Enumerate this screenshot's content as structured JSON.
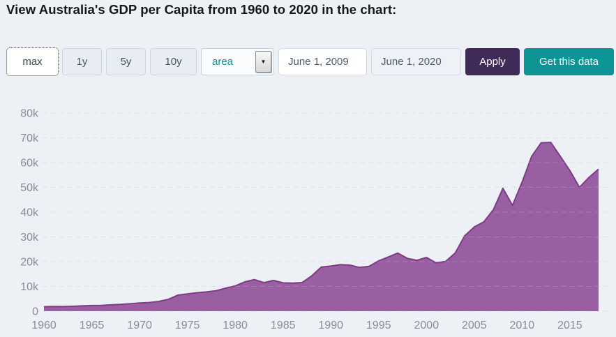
{
  "page": {
    "title": "View Australia's GDP per Capita from 1960 to 2020 in the chart:"
  },
  "toolbar": {
    "range_buttons": [
      {
        "label": "max",
        "selected": true
      },
      {
        "label": "1y",
        "selected": false
      },
      {
        "label": "5y",
        "selected": false
      },
      {
        "label": "10y",
        "selected": false
      }
    ],
    "chart_type_select": {
      "value": "area",
      "icon": "chevron-down-icon",
      "icon_glyph": "▼"
    },
    "date_from": {
      "value": "June 1, 2009"
    },
    "date_to": {
      "value": "June 1, 2020"
    },
    "apply_label": "Apply",
    "get_data_label": "Get this data"
  },
  "colors": {
    "page_background": "#edf1f6",
    "apply_button": "#402a58",
    "get_data_button": "#0e9494",
    "select_text": "#0f8f8f",
    "range_button_bg": "#e8edf3",
    "range_button_border": "#ccd6e0"
  },
  "chart_data": {
    "type": "area",
    "years": [
      1960,
      1961,
      1962,
      1963,
      1964,
      1965,
      1966,
      1967,
      1968,
      1969,
      1970,
      1971,
      1972,
      1973,
      1974,
      1975,
      1976,
      1977,
      1978,
      1979,
      1980,
      1981,
      1982,
      1983,
      1984,
      1985,
      1986,
      1987,
      1988,
      1989,
      1990,
      1991,
      1992,
      1993,
      1994,
      1995,
      1996,
      1997,
      1998,
      1999,
      2000,
      2001,
      2002,
      2003,
      2004,
      2005,
      2006,
      2007,
      2008,
      2009,
      2010,
      2011,
      2012,
      2013,
      2014,
      2015,
      2016,
      2017,
      2018
    ],
    "values": [
      1808,
      1875,
      1852,
      1964,
      2129,
      2278,
      2344,
      2576,
      2723,
      2991,
      3305,
      3495,
      3945,
      4767,
      6474,
      6991,
      7475,
      7764,
      8244,
      9282,
      10194,
      11834,
      12766,
      11518,
      12432,
      11437,
      11366,
      11562,
      14254,
      17793,
      18211,
      18827,
      18599,
      17660,
      18081,
      20320,
      21865,
      23467,
      21320,
      20533,
      21679,
      19491,
      20082,
      23447,
      30431,
      33999,
      36045,
      40960,
      49602,
      42772,
      52022,
      62517,
      68012,
      68150,
      62510,
      56755,
      49971,
      54028,
      57354
    ],
    "ylim": [
      0,
      80000
    ],
    "yticks": [
      0,
      10000,
      20000,
      30000,
      40000,
      50000,
      60000,
      70000,
      80000
    ],
    "ytick_labels": [
      "0",
      "10k",
      "20k",
      "30k",
      "40k",
      "50k",
      "60k",
      "70k",
      "80k"
    ],
    "xtick_years": [
      1960,
      1965,
      1970,
      1975,
      1980,
      1985,
      1990,
      1995,
      2000,
      2005,
      2010,
      2015
    ],
    "grid": true,
    "grid_style": "dashed",
    "legend": "none",
    "fill_color": "#9a5ea3",
    "line_color": "#7c3d85",
    "grid_color": "#d7dbe1",
    "axis_label_color": "#878d96",
    "background_color": "#edf1f6"
  }
}
